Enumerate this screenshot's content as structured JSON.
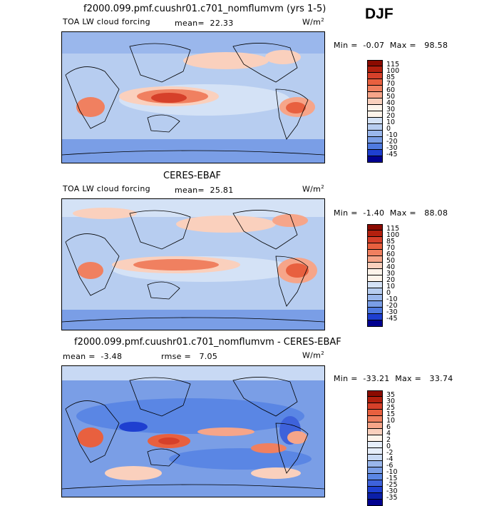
{
  "season": "DJF",
  "panels": [
    {
      "title": "f2000.099.pmf.cuushr01.c701_nomflumvm (yrs 1-5)",
      "field_label": "TOA LW cloud forcing",
      "mean_label": "mean=",
      "mean_value": "22.33",
      "units": "W/m",
      "units_sup": "2",
      "min_label": "Min =",
      "min_value": "-0.07",
      "max_label": "Max =",
      "max_value": "98.58",
      "colorbar_levels": [
        "115",
        "100",
        "85",
        "70",
        "60",
        "50",
        "40",
        "30",
        "20",
        "10",
        "0",
        "-10",
        "-20",
        "-30",
        "-45"
      ]
    },
    {
      "title": "CERES-EBAF",
      "field_label": "TOA LW cloud forcing",
      "mean_label": "mean=",
      "mean_value": "25.81",
      "units": "W/m",
      "units_sup": "2",
      "min_label": "Min =",
      "min_value": "-1.40",
      "max_label": "Max =",
      "max_value": "88.08",
      "colorbar_levels": [
        "115",
        "100",
        "85",
        "70",
        "60",
        "50",
        "40",
        "30",
        "20",
        "10",
        "0",
        "-10",
        "-20",
        "-30",
        "-45"
      ]
    },
    {
      "title": "f2000.099.pmf.cuushr01.c701_nomflumvm - CERES-EBAF",
      "mean_label": "mean =",
      "mean_value": "-3.48",
      "rmse_label": "rmse =",
      "rmse_value": "7.05",
      "units": "W/m",
      "units_sup": "2",
      "min_label": "Min =",
      "min_value": "-33.21",
      "max_label": "Max =",
      "max_value": "33.74",
      "colorbar_levels": [
        "35",
        "30",
        "25",
        "15",
        "10",
        "6",
        "4",
        "2",
        "0",
        "-2",
        "-4",
        "-6",
        "-10",
        "-15",
        "-25",
        "-30",
        "-35"
      ]
    }
  ],
  "colors": {
    "abs_palette": [
      "#8b0b00",
      "#b3200e",
      "#d6402a",
      "#e8603f",
      "#f08060",
      "#f6a589",
      "#fad0bd",
      "#fdf3ea",
      "#d4e2f6",
      "#b7cdf0",
      "#9ab7ec",
      "#7a9ee6",
      "#4f7ae0",
      "#1e3fd0",
      "#000090"
    ],
    "diff_palette": [
      "#8b0b00",
      "#b3200e",
      "#d6402a",
      "#e8603f",
      "#f08060",
      "#f6a589",
      "#fad0bd",
      "#fdf3ea",
      "#e6eefa",
      "#c8d9f4",
      "#9ab7ec",
      "#7a9ee6",
      "#5a86e4",
      "#3e62db",
      "#1e3fd0",
      "#0b1fa8",
      "#000090"
    ]
  }
}
